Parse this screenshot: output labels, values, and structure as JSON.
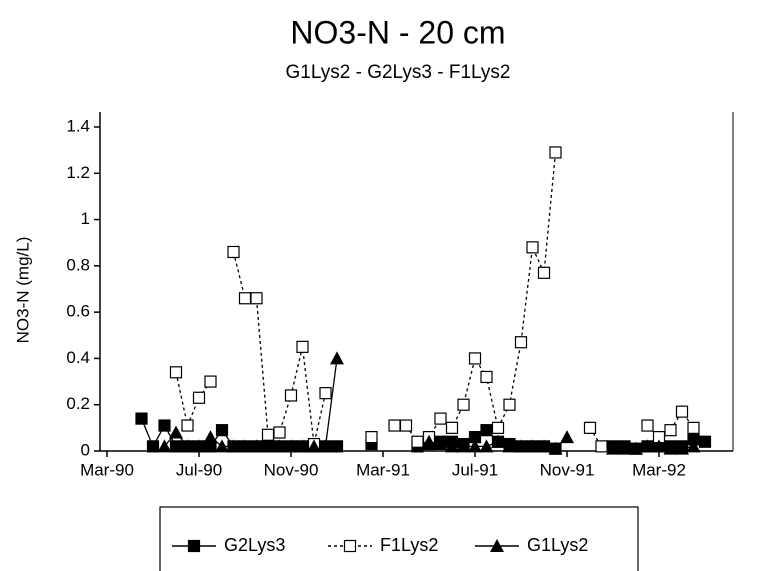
{
  "chart_data": {
    "type": "line",
    "title": "NO3-N - 20 cm",
    "subtitle": "G1Lys2 - G2Lys3 - F1Lys2",
    "y_label": "NO3-N (mg/L)",
    "categories": [
      "Mar-90",
      null,
      null,
      null,
      null,
      null,
      null,
      null,
      "Jul-90",
      null,
      null,
      null,
      null,
      null,
      null,
      null,
      "Nov-90",
      null,
      null,
      null,
      null,
      null,
      null,
      null,
      "Mar-91",
      null,
      null,
      null,
      null,
      null,
      null,
      null,
      "Jul-91",
      null,
      null,
      null,
      null,
      null,
      null,
      null,
      "Nov-91",
      null,
      null,
      null,
      null,
      null,
      null,
      null,
      "Mar-92",
      null,
      null,
      null,
      null
    ],
    "ylim": [
      0,
      1.4
    ],
    "yticks": [
      0,
      0.2,
      0.4,
      0.6,
      0.8,
      1,
      1.2,
      1.4
    ],
    "series": [
      {
        "name": "G2Lys3",
        "color": "#000000",
        "marker": "filled-square",
        "line_style": "solid",
        "values": [
          null,
          null,
          null,
          0.14,
          0.02,
          0.11,
          0.02,
          0.02,
          0.02,
          0.02,
          0.09,
          0.02,
          0.02,
          0.02,
          0.02,
          0.02,
          0.02,
          0.02,
          0.02,
          0.02,
          0.02,
          null,
          null,
          0.03,
          null,
          null,
          null,
          0.02,
          0.03,
          0.04,
          0.04,
          0.03,
          0.06,
          0.09,
          0.04,
          0.03,
          0.02,
          0.02,
          0.02,
          0.01,
          null,
          null,
          null,
          null,
          0.02,
          0.02,
          0.01,
          0.02,
          0.02,
          0.02,
          0.02,
          0.05,
          0.04
        ]
      },
      {
        "name": "F1Lys2",
        "color": "#000000",
        "marker": "open-square",
        "line_style": "dashed",
        "values": [
          null,
          null,
          null,
          null,
          null,
          null,
          0.34,
          0.11,
          0.23,
          0.3,
          null,
          0.86,
          0.66,
          0.66,
          0.07,
          0.08,
          0.24,
          0.45,
          0.03,
          0.25,
          null,
          null,
          null,
          0.06,
          null,
          0.11,
          0.11,
          0.04,
          0.06,
          0.14,
          0.1,
          0.2,
          0.4,
          0.32,
          0.1,
          0.2,
          0.47,
          0.88,
          0.77,
          1.29,
          null,
          null,
          0.1,
          0.02,
          null,
          null,
          null,
          0.11,
          0.06,
          0.09,
          0.17,
          0.1,
          null
        ]
      },
      {
        "name": "G1Lys2",
        "color": "#000000",
        "marker": "triangle",
        "line_style": "solid",
        "values": [
          null,
          null,
          null,
          null,
          null,
          0.02,
          0.08,
          0.02,
          0.02,
          0.06,
          0.02,
          0.02,
          0.02,
          0.02,
          0.02,
          0.02,
          0.02,
          0.02,
          0.02,
          0.02,
          0.4,
          null,
          null,
          null,
          null,
          null,
          null,
          null,
          0.04,
          0.03,
          0.02,
          0.02,
          0.02,
          0.02,
          0.04,
          0.02,
          0.02,
          0.02,
          0.02,
          0.01,
          0.06,
          null,
          null,
          null,
          0.01,
          0.01,
          0.01,
          0.02,
          0.02,
          0.01,
          0.01,
          0.02,
          null
        ]
      }
    ]
  }
}
